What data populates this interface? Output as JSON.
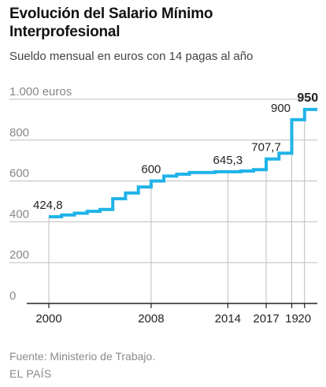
{
  "title": "Evolución del Salario Mínimo Interprofesional",
  "subtitle": "Sueldo mensual en euros con 14 pagas al año",
  "source": "Fuente: Ministerio de Trabajo.",
  "brand": "EL PAÍS",
  "colors": {
    "line": "#1fb3e8",
    "grid": "#bdbdbd",
    "axis": "#222222",
    "label": "#888888"
  },
  "chart_data": {
    "type": "line",
    "step": true,
    "x": [
      2000,
      2001,
      2002,
      2003,
      2004,
      2005,
      2006,
      2007,
      2008,
      2009,
      2010,
      2011,
      2012,
      2013,
      2014,
      2015,
      2016,
      2017,
      2018,
      2019,
      2020
    ],
    "series": [
      {
        "values": [
          424.8,
          433.5,
          442.2,
          451.2,
          460.5,
          513.0,
          540.9,
          570.6,
          600.0,
          624.0,
          633.3,
          641.4,
          641.4,
          645.3,
          645.3,
          648.6,
          655.2,
          707.7,
          735.9,
          900.0,
          950.0
        ]
      }
    ],
    "ylim": [
      0,
      1000
    ],
    "yticks": [
      "0",
      "200",
      "400",
      "600",
      "800",
      "1.000 euros"
    ],
    "ytick_values": [
      0,
      200,
      400,
      600,
      800,
      1000
    ],
    "xticks": [
      "2000",
      "2008",
      "2014",
      "2017",
      "19",
      "20"
    ],
    "xtick_values": [
      2000,
      2008,
      2014,
      2017,
      2019,
      2020
    ],
    "annotations": [
      {
        "x": 2000,
        "y": 424.8,
        "text": "424,8",
        "bold": false
      },
      {
        "x": 2008,
        "y": 600,
        "text": "600",
        "bold": false
      },
      {
        "x": 2014,
        "y": 645.3,
        "text": "645,3",
        "bold": false
      },
      {
        "x": 2017,
        "y": 707.7,
        "text": "707,7",
        "bold": false
      },
      {
        "x": 2019,
        "y": 900,
        "text": "900",
        "bold": false
      },
      {
        "x": 2020,
        "y": 950,
        "text": "950",
        "bold": true
      }
    ],
    "grid": true
  }
}
